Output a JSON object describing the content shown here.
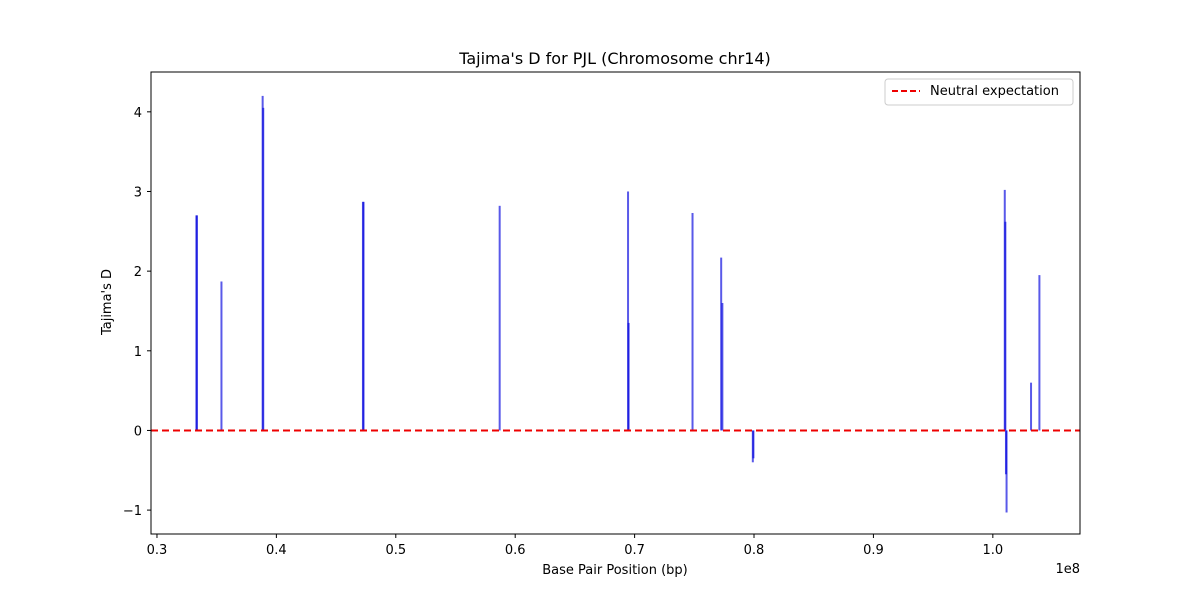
{
  "chart_data": {
    "type": "bar",
    "title": "Tajima's D for PJL (Chromosome chr14)",
    "xlabel": "Base Pair Position (bp)",
    "ylabel": "Tajima's D",
    "x_offset_text": "1e8",
    "x_scale_factor": 100000000,
    "xlim": [
      29500000,
      107300000
    ],
    "ylim": [
      -1.3,
      4.5
    ],
    "x_ticks": [
      30000000,
      40000000,
      50000000,
      60000000,
      70000000,
      80000000,
      90000000,
      100000000
    ],
    "x_tick_labels": [
      "0.3",
      "0.4",
      "0.5",
      "0.6",
      "0.7",
      "0.8",
      "0.9",
      "1.0"
    ],
    "y_ticks": [
      -1,
      0,
      1,
      2,
      3,
      4
    ],
    "y_tick_labels": [
      "−1",
      "0",
      "1",
      "2",
      "3",
      "4"
    ],
    "grid": false,
    "legend_position": "top-right",
    "bar_color": "#0000dd",
    "reference_line": {
      "label": "Neutral expectation",
      "y": 0,
      "color": "#ee0000",
      "style": "dashed"
    },
    "series": [
      {
        "x": [
          33300000,
          33350000,
          35400000,
          38850000,
          38900000,
          47250000,
          47300000,
          58700000,
          69450000,
          69500000,
          74850000,
          77250000,
          77350000,
          79900000,
          79950000,
          101000000,
          101050000,
          101100000,
          101150000,
          103200000,
          103900000
        ],
        "y": [
          2.7,
          2.7,
          1.87,
          4.2,
          4.05,
          2.87,
          2.87,
          2.82,
          3.0,
          1.35,
          2.73,
          2.17,
          1.6,
          -0.4,
          -0.35,
          3.02,
          2.62,
          -0.55,
          -1.03,
          0.6,
          1.95
        ]
      }
    ]
  }
}
